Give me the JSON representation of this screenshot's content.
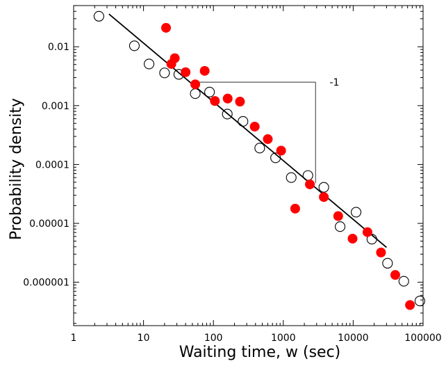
{
  "chart_data": {
    "type": "scatter",
    "xlabel": "Waiting time, w (sec)",
    "ylabel": "Probability density",
    "xscale": "log",
    "yscale": "log",
    "xlim": [
      1,
      100000
    ],
    "ylim": [
      3e-07,
      0.1
    ],
    "x_ticks": [
      {
        "value": 1,
        "label": "1"
      },
      {
        "value": 10,
        "label": "10"
      },
      {
        "value": 100,
        "label": "100"
      },
      {
        "value": 1000,
        "label": "1000"
      },
      {
        "value": 10000,
        "label": "10000"
      },
      {
        "value": 100000,
        "label": "100000"
      }
    ],
    "y_ticks": [
      {
        "value": 0.01,
        "label": "0.01"
      },
      {
        "value": 0.001,
        "label": "0.001"
      },
      {
        "value": 0.0001,
        "label": "0.0001"
      },
      {
        "value": 1e-05,
        "label": "0.00001"
      },
      {
        "value": 1e-06,
        "label": "0.000001"
      }
    ],
    "grid": false,
    "series": [
      {
        "marker": "open-circle",
        "color": "#000000",
        "points": [
          [
            2.3,
            0.033
          ],
          [
            7.4,
            0.0104
          ],
          [
            12,
            0.0051
          ],
          [
            20,
            0.0036
          ],
          [
            32,
            0.0034
          ],
          [
            55,
            0.0016
          ],
          [
            88,
            0.0017
          ],
          [
            158,
            0.00072
          ],
          [
            265,
            0.00054
          ],
          [
            460,
            0.00019
          ],
          [
            775,
            0.00013
          ],
          [
            1300,
            6e-05
          ],
          [
            2250,
            6.5e-05
          ],
          [
            3800,
            4.1e-05
          ],
          [
            6500,
            8.8e-06
          ],
          [
            11000,
            1.55e-05
          ],
          [
            18500,
            5.4e-06
          ],
          [
            31000,
            2.1e-06
          ],
          [
            53000,
            1.04e-06
          ],
          [
            90000,
            4.8e-07
          ]
        ]
      },
      {
        "marker": "filled-circle",
        "color": "#ff0000",
        "points": [
          [
            21,
            0.021
          ],
          [
            25,
            0.0051
          ],
          [
            28,
            0.0064
          ],
          [
            40,
            0.0037
          ],
          [
            55,
            0.0023
          ],
          [
            75,
            0.0039
          ],
          [
            105,
            0.0012
          ],
          [
            160,
            0.00132
          ],
          [
            240,
            0.00117
          ],
          [
            390,
            0.00044
          ],
          [
            600,
            0.00027
          ],
          [
            930,
            0.000172
          ],
          [
            1480,
            1.78e-05
          ],
          [
            2400,
            4.6e-05
          ],
          [
            3800,
            2.8e-05
          ],
          [
            6100,
            1.33e-05
          ],
          [
            9800,
            5.5e-06
          ],
          [
            16000,
            7.1e-06
          ],
          [
            25000,
            3.2e-06
          ],
          [
            40000,
            1.33e-06
          ],
          [
            65000,
            4.1e-07
          ]
        ]
      }
    ],
    "fit_line": {
      "color": "#000000",
      "points": [
        [
          3.2,
          0.036
        ],
        [
          30000,
          3.9e-06
        ]
      ]
    },
    "slope_annotation": {
      "text": "-1",
      "corner": [
        2900,
        0.0025
      ],
      "start_x": 55,
      "end_y": 4.8e-05,
      "label_x": 5400,
      "label_y": 0.0025
    }
  }
}
